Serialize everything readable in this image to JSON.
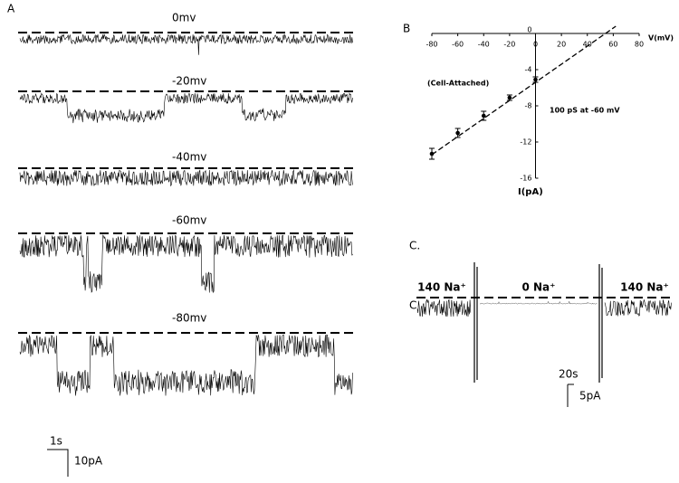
{
  "panels": {
    "A": {
      "label": "A",
      "traces": [
        "0mv",
        "-20mv",
        "-40mv",
        "-60mv",
        "-80mv"
      ],
      "scale_time": "1s",
      "scale_current": "10pA"
    },
    "C": {
      "label": "C.",
      "marker": "C",
      "segments": [
        "140 Na⁺",
        "0 Na⁺",
        "140 Na⁺"
      ],
      "scale_time": "20s",
      "scale_current": "5pA"
    }
  },
  "chart_data": {
    "type": "scatter",
    "panel_label": "B",
    "x_label": "V(mV)",
    "y_label": "I(pA)",
    "annotations": [
      "(Cell-Attached)",
      "100 pS at -60 mV"
    ],
    "x": [
      -80,
      -60,
      -40,
      -20,
      0
    ],
    "y": [
      -13.3,
      -11,
      -9.1,
      -7.1,
      -5.1
    ],
    "error": [
      0.6,
      0.5,
      0.5,
      0.3,
      0.3
    ],
    "fit": {
      "x": [
        -80,
        62
      ],
      "y": [
        -13.4,
        0.8
      ]
    },
    "color": "#000000",
    "xlim": [
      -80,
      80
    ],
    "xticks": [
      -80,
      -60,
      -40,
      -20,
      0,
      20,
      40,
      60,
      80
    ],
    "ylim": [
      -16,
      0
    ],
    "yticks": [
      -16,
      -12,
      -8,
      -4,
      0
    ]
  }
}
